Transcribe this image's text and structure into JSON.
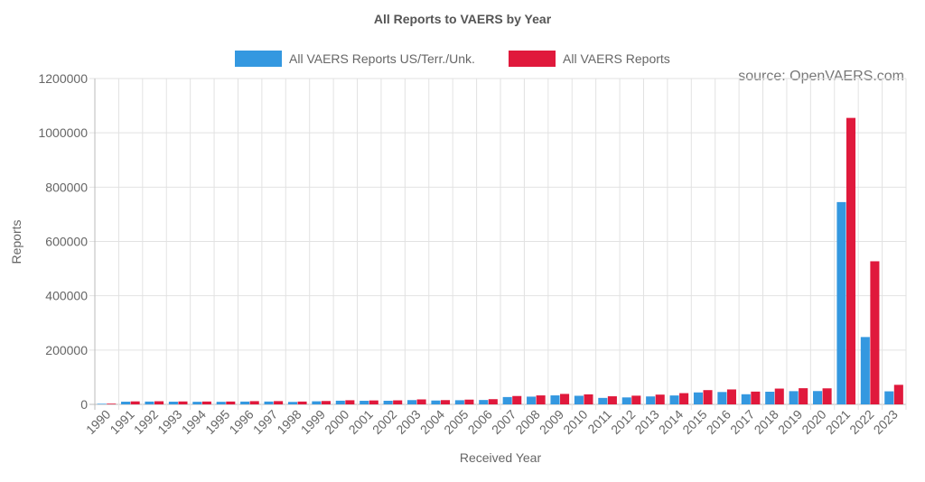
{
  "chart_data": {
    "type": "bar",
    "title": "All Reports to VAERS by Year",
    "xlabel": "Received Year",
    "ylabel": "Reports",
    "ylim": [
      0,
      1200000
    ],
    "yticks": [
      "0",
      "200000",
      "400000",
      "600000",
      "800000",
      "1000000",
      "1200000"
    ],
    "grid": true,
    "legend_position": "top-center",
    "annotation": "source: OpenVAERS.com",
    "categories": [
      "1990",
      "1991",
      "1992",
      "1993",
      "1994",
      "1995",
      "1996",
      "1997",
      "1998",
      "1999",
      "2000",
      "2001",
      "2002",
      "2003",
      "2004",
      "2005",
      "2006",
      "2007",
      "2008",
      "2009",
      "2010",
      "2011",
      "2012",
      "2013",
      "2014",
      "2015",
      "2016",
      "2017",
      "2018",
      "2019",
      "2020",
      "2021",
      "2022",
      "2023"
    ],
    "series": [
      {
        "name": "All VAERS Reports US/Terr./Unk.",
        "color": "#3498e0",
        "values": [
          2100,
          9900,
          10300,
          9900,
          9500,
          9400,
          10300,
          10400,
          9000,
          11300,
          13500,
          13200,
          13300,
          15700,
          14200,
          15300,
          16100,
          27000,
          28500,
          33100,
          31700,
          23800,
          25600,
          29200,
          32800,
          44000,
          45500,
          37300,
          46600,
          48600,
          49000,
          745000,
          248000,
          48000
        ]
      },
      {
        "name": "All VAERS Reports",
        "color": "#e0193c",
        "values": [
          2600,
          11000,
          11500,
          10800,
          10500,
          10500,
          11900,
          12000,
          10400,
          12400,
          15200,
          14500,
          14800,
          18300,
          15700,
          17500,
          19200,
          30800,
          33000,
          38500,
          36900,
          29800,
          32000,
          35900,
          41400,
          52500,
          55000,
          47000,
          58100,
          59500,
          59000,
          1055000,
          527000,
          72000
        ]
      }
    ]
  }
}
